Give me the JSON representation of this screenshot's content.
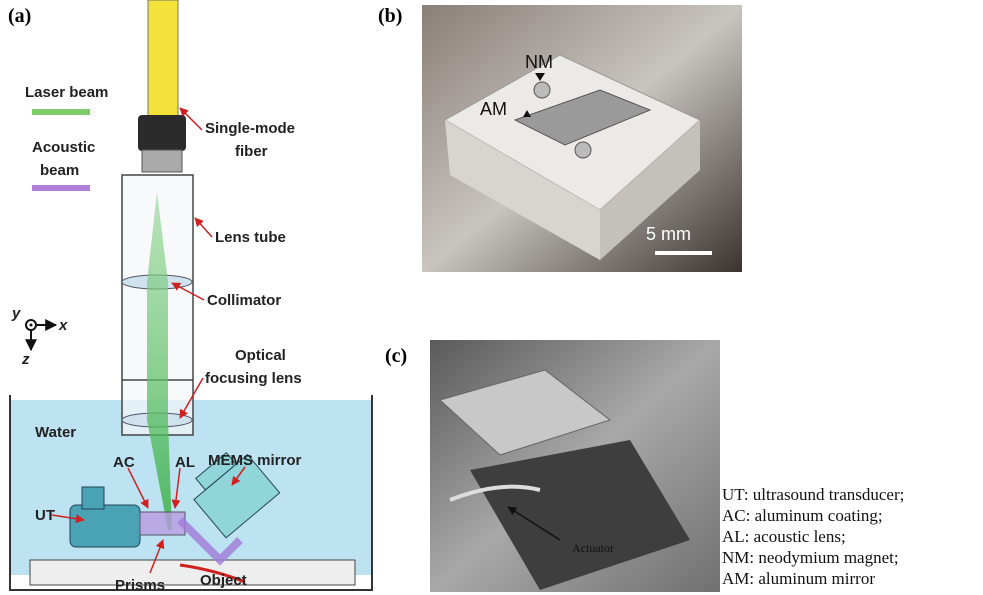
{
  "panel_labels": [
    "(a)",
    "(b)",
    "(c)"
  ],
  "panel_a": {
    "legend": {
      "laser": "Laser beam",
      "acoustic": [
        "Acoustic",
        "beam"
      ]
    },
    "fiber": [
      "Single-mode",
      "fiber"
    ],
    "lens_tube": "Lens tube",
    "collimator": "Collimator",
    "focusing_lens": [
      "Optical",
      "focusing lens"
    ],
    "water": "Water",
    "ac": "AC",
    "al": "AL",
    "mems": "MEMS mirror",
    "ut": "UT",
    "prisms": "Prisms",
    "object": "Object",
    "axes": {
      "y": "y",
      "x": "x",
      "z": "z"
    }
  },
  "panel_b": {
    "nm": "NM",
    "am": "AM",
    "scale": "5 mm"
  },
  "panel_c": {
    "actuator": "Actuator"
  },
  "abbreviations": [
    "UT: ultrasound transducer;",
    "AC: aluminum coating;",
    "AL: acoustic lens;",
    "NM: neodymium magnet;",
    "AM: aluminum mirror"
  ]
}
